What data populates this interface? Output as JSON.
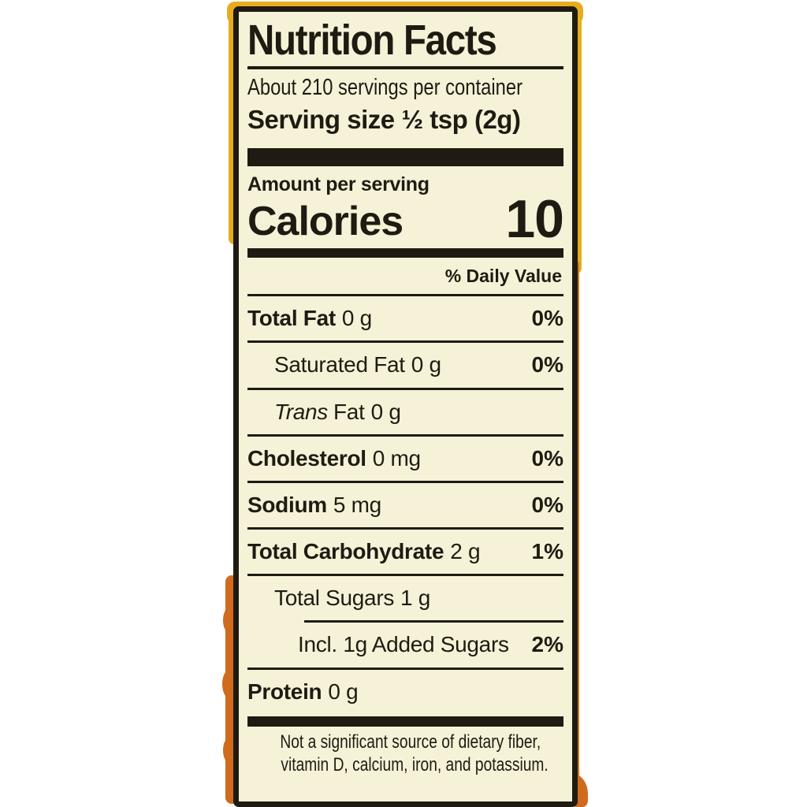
{
  "label": {
    "title": "Nutrition Facts",
    "servings_line": "About 210 servings per container",
    "serving_size": {
      "label": "Serving size",
      "value": "½ tsp (2g)"
    },
    "amount_per_serving": "Amount per serving",
    "calories": {
      "label": "Calories",
      "value": "10"
    },
    "daily_value_header": "% Daily Value",
    "nutrients": [
      {
        "name": "Total Fat",
        "amount": "0 g",
        "dv": "0%"
      },
      {
        "name": "Saturated Fat",
        "amount": "0 g",
        "dv": "0%"
      },
      {
        "name_italic": "Trans",
        "name": "Fat",
        "amount": "0 g",
        "dv": ""
      },
      {
        "name": "Cholesterol",
        "amount": "0 mg",
        "dv": "0%"
      },
      {
        "name": "Sodium",
        "amount": "5 mg",
        "dv": "0%"
      },
      {
        "name": "Total Carbohydrate",
        "amount": "2 g",
        "dv": "1%"
      },
      {
        "name": "Total Sugars",
        "amount": "1 g",
        "dv": ""
      },
      {
        "name": "Incl. 1g Added Sugars",
        "amount": "",
        "dv": "2%"
      },
      {
        "name": "Protein",
        "amount": "0 g",
        "dv": ""
      }
    ],
    "footnote": [
      "Not a significant source of dietary fiber,",
      "vitamin D, calcium, iron, and potassium."
    ],
    "colors": {
      "paper": "#f6f2d8",
      "ink": "#1f1b12",
      "package_yellow": "#e7ac1d",
      "package_orange": "#d06a1d"
    }
  }
}
